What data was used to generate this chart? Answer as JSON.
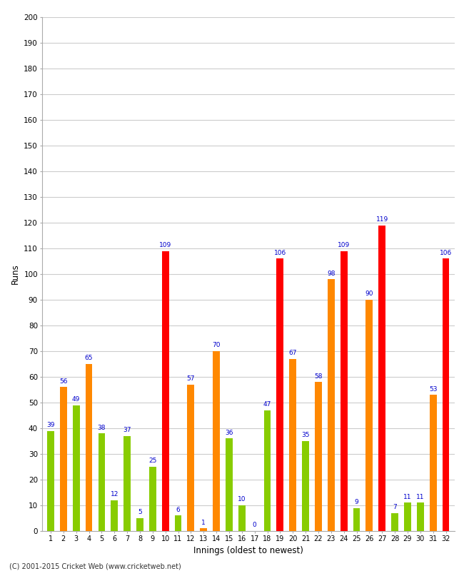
{
  "innings": [
    1,
    2,
    3,
    4,
    5,
    6,
    7,
    8,
    9,
    10,
    11,
    12,
    13,
    14,
    15,
    16,
    17,
    18,
    19,
    20,
    21,
    22,
    23,
    24,
    25,
    26,
    27,
    28,
    29,
    30,
    31,
    32
  ],
  "values": [
    39,
    56,
    49,
    65,
    38,
    12,
    37,
    5,
    25,
    109,
    6,
    57,
    1,
    70,
    36,
    10,
    0,
    47,
    106,
    67,
    35,
    58,
    98,
    109,
    9,
    90,
    119,
    7,
    11,
    11,
    53,
    106
  ],
  "colors": [
    "#88cc00",
    "#ff8800",
    "#88cc00",
    "#ff8800",
    "#88cc00",
    "#88cc00",
    "#88cc00",
    "#88cc00",
    "#88cc00",
    "#ff0000",
    "#88cc00",
    "#ff8800",
    "#ff8800",
    "#ff8800",
    "#88cc00",
    "#88cc00",
    "#ff0000",
    "#88cc00",
    "#ff0000",
    "#ff8800",
    "#88cc00",
    "#ff8800",
    "#ff8800",
    "#ff0000",
    "#88cc00",
    "#ff8800",
    "#ff0000",
    "#88cc00",
    "#88cc00",
    "#88cc00",
    "#ff8800",
    "#ff0000"
  ],
  "xlabel": "Innings (oldest to newest)",
  "ylabel": "Runs",
  "ylim": [
    0,
    200
  ],
  "yticks": [
    0,
    10,
    20,
    30,
    40,
    50,
    60,
    70,
    80,
    90,
    100,
    110,
    120,
    130,
    140,
    150,
    160,
    170,
    180,
    190,
    200
  ],
  "label_color": "#0000cc",
  "label_fontsize": 6.5,
  "bar_width": 0.55,
  "background_color": "#ffffff",
  "grid_color": "#cccccc",
  "footer": "(C) 2001-2015 Cricket Web (www.cricketweb.net)"
}
